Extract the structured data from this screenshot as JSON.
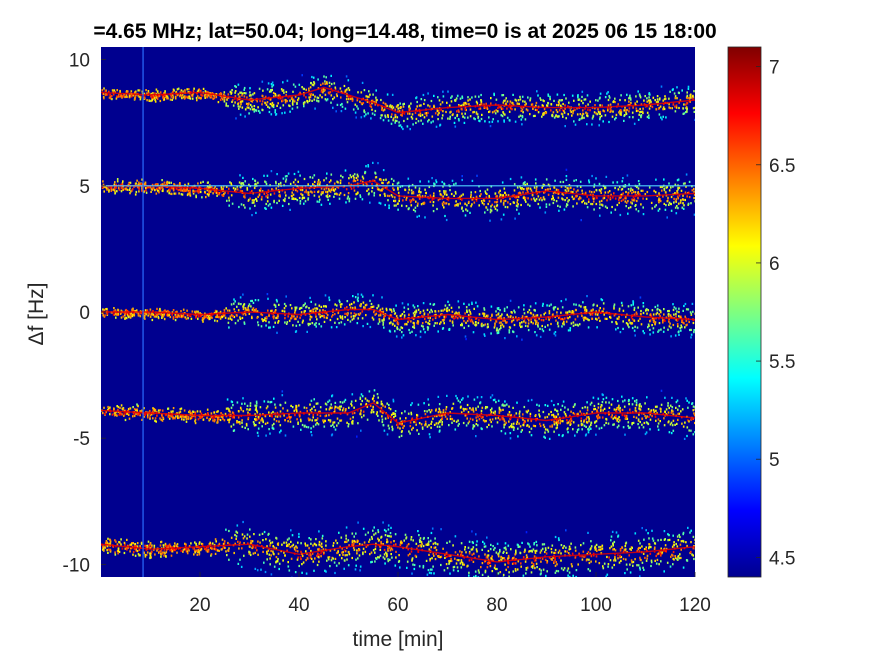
{
  "chart_data": {
    "type": "heatmap",
    "title": "=4.65 MHz;  lat=50.04; long=14.48, time=0 is at 2025 06 15 18:00",
    "xlabel": "time [min]",
    "ylabel": "Δf [Hz]",
    "xlim": [
      0,
      120
    ],
    "ylim": [
      -10.5,
      10.5
    ],
    "xticks": [
      20,
      40,
      60,
      80,
      100,
      120
    ],
    "yticks": [
      -10,
      -5,
      0,
      5,
      10
    ],
    "colorbar": {
      "colormap": "jet",
      "range": [
        4.4,
        7.1
      ],
      "ticks": [
        4.5,
        5,
        5.5,
        6,
        6.5,
        7
      ]
    },
    "background_color": "#00008f",
    "traces": [
      {
        "name": "",
        "points": [
          [
            0,
            8.7
          ],
          [
            10,
            8.6
          ],
          [
            20,
            8.7
          ],
          [
            30,
            8.4
          ],
          [
            40,
            8.6
          ],
          [
            45,
            8.9
          ],
          [
            50,
            8.6
          ],
          [
            55,
            8.3
          ],
          [
            60,
            7.9
          ],
          [
            70,
            8.1
          ],
          [
            80,
            8.2
          ],
          [
            90,
            8.1
          ],
          [
            100,
            8.1
          ],
          [
            110,
            8.2
          ],
          [
            120,
            8.4
          ]
        ],
        "spread": 0.6
      },
      {
        "name": "",
        "points": [
          [
            0,
            5.0
          ],
          [
            10,
            5.0
          ],
          [
            20,
            4.9
          ],
          [
            30,
            4.7
          ],
          [
            40,
            4.9
          ],
          [
            50,
            5.0
          ],
          [
            55,
            5.2
          ],
          [
            60,
            4.6
          ],
          [
            70,
            4.5
          ],
          [
            80,
            4.5
          ],
          [
            90,
            4.8
          ],
          [
            100,
            4.6
          ],
          [
            110,
            4.6
          ],
          [
            120,
            4.7
          ]
        ],
        "spread": 0.7
      },
      {
        "name": "",
        "points": [
          [
            0,
            0.0
          ],
          [
            10,
            0.0
          ],
          [
            20,
            -0.1
          ],
          [
            30,
            0.0
          ],
          [
            40,
            -0.1
          ],
          [
            50,
            0.1
          ],
          [
            55,
            0.1
          ],
          [
            60,
            -0.3
          ],
          [
            70,
            -0.1
          ],
          [
            80,
            -0.3
          ],
          [
            90,
            -0.2
          ],
          [
            100,
            0.0
          ],
          [
            110,
            -0.2
          ],
          [
            120,
            -0.3
          ]
        ],
        "spread": 0.6
      },
      {
        "name": "",
        "points": [
          [
            0,
            -3.9
          ],
          [
            10,
            -4.0
          ],
          [
            20,
            -4.1
          ],
          [
            30,
            -4.1
          ],
          [
            40,
            -4.0
          ],
          [
            50,
            -4.0
          ],
          [
            55,
            -3.6
          ],
          [
            60,
            -4.4
          ],
          [
            70,
            -4.0
          ],
          [
            80,
            -4.1
          ],
          [
            90,
            -4.3
          ],
          [
            100,
            -4.0
          ],
          [
            110,
            -4.0
          ],
          [
            120,
            -4.2
          ]
        ],
        "spread": 0.7
      },
      {
        "name": "",
        "points": [
          [
            0,
            -9.2
          ],
          [
            10,
            -9.4
          ],
          [
            20,
            -9.3
          ],
          [
            30,
            -9.2
          ],
          [
            40,
            -9.6
          ],
          [
            50,
            -9.3
          ],
          [
            55,
            -9.2
          ],
          [
            60,
            -9.3
          ],
          [
            70,
            -9.6
          ],
          [
            80,
            -9.9
          ],
          [
            90,
            -9.7
          ],
          [
            100,
            -9.6
          ],
          [
            110,
            -9.5
          ],
          [
            120,
            -9.3
          ]
        ],
        "spread": 0.8
      }
    ],
    "horizontal_lines": [
      {
        "y": 5.0,
        "x_range": [
          0,
          120
        ]
      }
    ],
    "vertical_lines": [
      {
        "x": 8.5
      }
    ]
  }
}
